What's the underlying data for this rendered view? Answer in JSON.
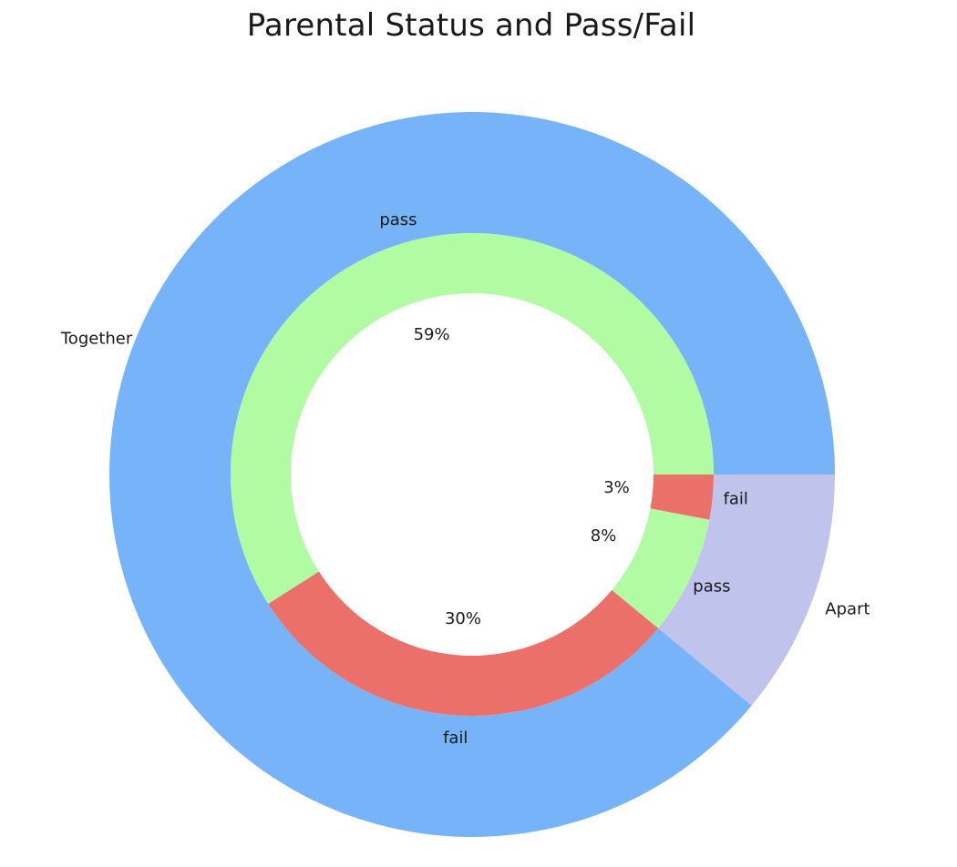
{
  "chart_data": {
    "type": "pie",
    "title": "Parental Status and Pass/Fail",
    "outer_ring": {
      "categories": [
        "Together",
        "Apart"
      ],
      "values": [
        89,
        11
      ],
      "colors": [
        "#76b3f8",
        "#c0c3ec"
      ]
    },
    "inner_ring": {
      "groups": [
        "Together",
        "Together",
        "Apart",
        "Apart"
      ],
      "categories": [
        "pass",
        "fail",
        "pass",
        "fail"
      ],
      "values": [
        59,
        30,
        8,
        3
      ],
      "percent_labels": [
        "59%",
        "30%",
        "8%",
        "3%"
      ],
      "colors": [
        "#b1fca3",
        "#ec706a",
        "#b1fca3",
        "#ec706a"
      ]
    },
    "legend": "none",
    "grid": false
  }
}
